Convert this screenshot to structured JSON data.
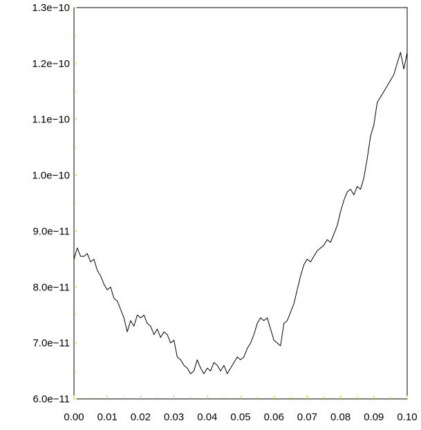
{
  "chart_data": {
    "type": "line",
    "title": "",
    "xlabel": "",
    "ylabel": "",
    "xlim": [
      0.0,
      0.1
    ],
    "ylim": [
      6e-11,
      1.3e-10
    ],
    "grid": false,
    "x_ticks": [
      0.0,
      0.01,
      0.02,
      0.03,
      0.04,
      0.05,
      0.06,
      0.07,
      0.08,
      0.09,
      0.1
    ],
    "x_tick_labels": [
      "0.00",
      "0.01",
      "0.02",
      "0.03",
      "0.04",
      "0.05",
      "0.06",
      "0.07",
      "0.08",
      "0.09",
      "0.10"
    ],
    "y_ticks": [
      6e-11,
      7e-11,
      8e-11,
      9e-11,
      1e-10,
      1.1e-10,
      1.2e-10,
      1.3e-10
    ],
    "y_tick_labels": [
      "6.0e−11",
      "7.0e−11",
      "8.0e−11",
      "9.0e−11",
      "1.0e−10",
      "1.1e−10",
      "1.2e−10",
      "1.3e−10"
    ],
    "colors": {
      "line": "#000000",
      "axis": "#000000",
      "tick": "#e8d000"
    },
    "series": [
      {
        "x": [
          0.0,
          0.001,
          0.002,
          0.003,
          0.004,
          0.005,
          0.006,
          0.007,
          0.008,
          0.009,
          0.01,
          0.011,
          0.012,
          0.013,
          0.014,
          0.015,
          0.016,
          0.017,
          0.018,
          0.019,
          0.02,
          0.021,
          0.022,
          0.023,
          0.024,
          0.025,
          0.026,
          0.027,
          0.028,
          0.029,
          0.03,
          0.031,
          0.032,
          0.033,
          0.034,
          0.035,
          0.036,
          0.037,
          0.038,
          0.039,
          0.04,
          0.041,
          0.042,
          0.043,
          0.044,
          0.045,
          0.046,
          0.047,
          0.048,
          0.049,
          0.05,
          0.051,
          0.052,
          0.053,
          0.054,
          0.055,
          0.056,
          0.057,
          0.058,
          0.059,
          0.06,
          0.061,
          0.062,
          0.063,
          0.064,
          0.065,
          0.066,
          0.067,
          0.068,
          0.069,
          0.07,
          0.071,
          0.072,
          0.073,
          0.074,
          0.075,
          0.076,
          0.077,
          0.078,
          0.079,
          0.08,
          0.081,
          0.082,
          0.083,
          0.084,
          0.085,
          0.086,
          0.087,
          0.088,
          0.089,
          0.09,
          0.091,
          0.092,
          0.093,
          0.094,
          0.095,
          0.096,
          0.097,
          0.098,
          0.099,
          0.1
        ],
        "y": [
          8.5e-11,
          8.7e-11,
          8.55e-11,
          8.55e-11,
          8.6e-11,
          8.45e-11,
          8.5e-11,
          8.3e-11,
          8.2e-11,
          8.05e-11,
          7.95e-11,
          8e-11,
          7.8e-11,
          7.75e-11,
          7.6e-11,
          7.45e-11,
          7.2e-11,
          7.4e-11,
          7.3e-11,
          7.5e-11,
          7.45e-11,
          7.5e-11,
          7.35e-11,
          7.3e-11,
          7.15e-11,
          7.25e-11,
          7.1e-11,
          7.2e-11,
          7.15e-11,
          7e-11,
          7.05e-11,
          6.75e-11,
          6.7e-11,
          6.6e-11,
          6.55e-11,
          6.45e-11,
          6.5e-11,
          6.7e-11,
          6.55e-11,
          6.45e-11,
          6.55e-11,
          6.5e-11,
          6.65e-11,
          6.6e-11,
          6.5e-11,
          6.6e-11,
          6.45e-11,
          6.55e-11,
          6.65e-11,
          6.75e-11,
          6.7e-11,
          6.75e-11,
          6.9e-11,
          7e-11,
          7.15e-11,
          7.35e-11,
          7.45e-11,
          7.4e-11,
          7.45e-11,
          7.25e-11,
          7.05e-11,
          7e-11,
          6.95e-11,
          7.35e-11,
          7.4e-11,
          7.55e-11,
          7.7e-11,
          7.95e-11,
          8.2e-11,
          8.4e-11,
          8.5e-11,
          8.45e-11,
          8.55e-11,
          8.65e-11,
          8.7e-11,
          8.75e-11,
          8.85e-11,
          8.8e-11,
          8.95e-11,
          9.1e-11,
          9.35e-11,
          9.55e-11,
          9.7e-11,
          9.75e-11,
          9.65e-11,
          9.8e-11,
          9.75e-11,
          9.95e-11,
          1.03e-10,
          1.07e-10,
          1.09e-10,
          1.13e-10,
          1.14e-10,
          1.15e-10,
          1.16e-10,
          1.17e-10,
          1.18e-10,
          1.2e-10,
          1.22e-10,
          1.19e-10,
          1.22e-10
        ]
      }
    ]
  }
}
